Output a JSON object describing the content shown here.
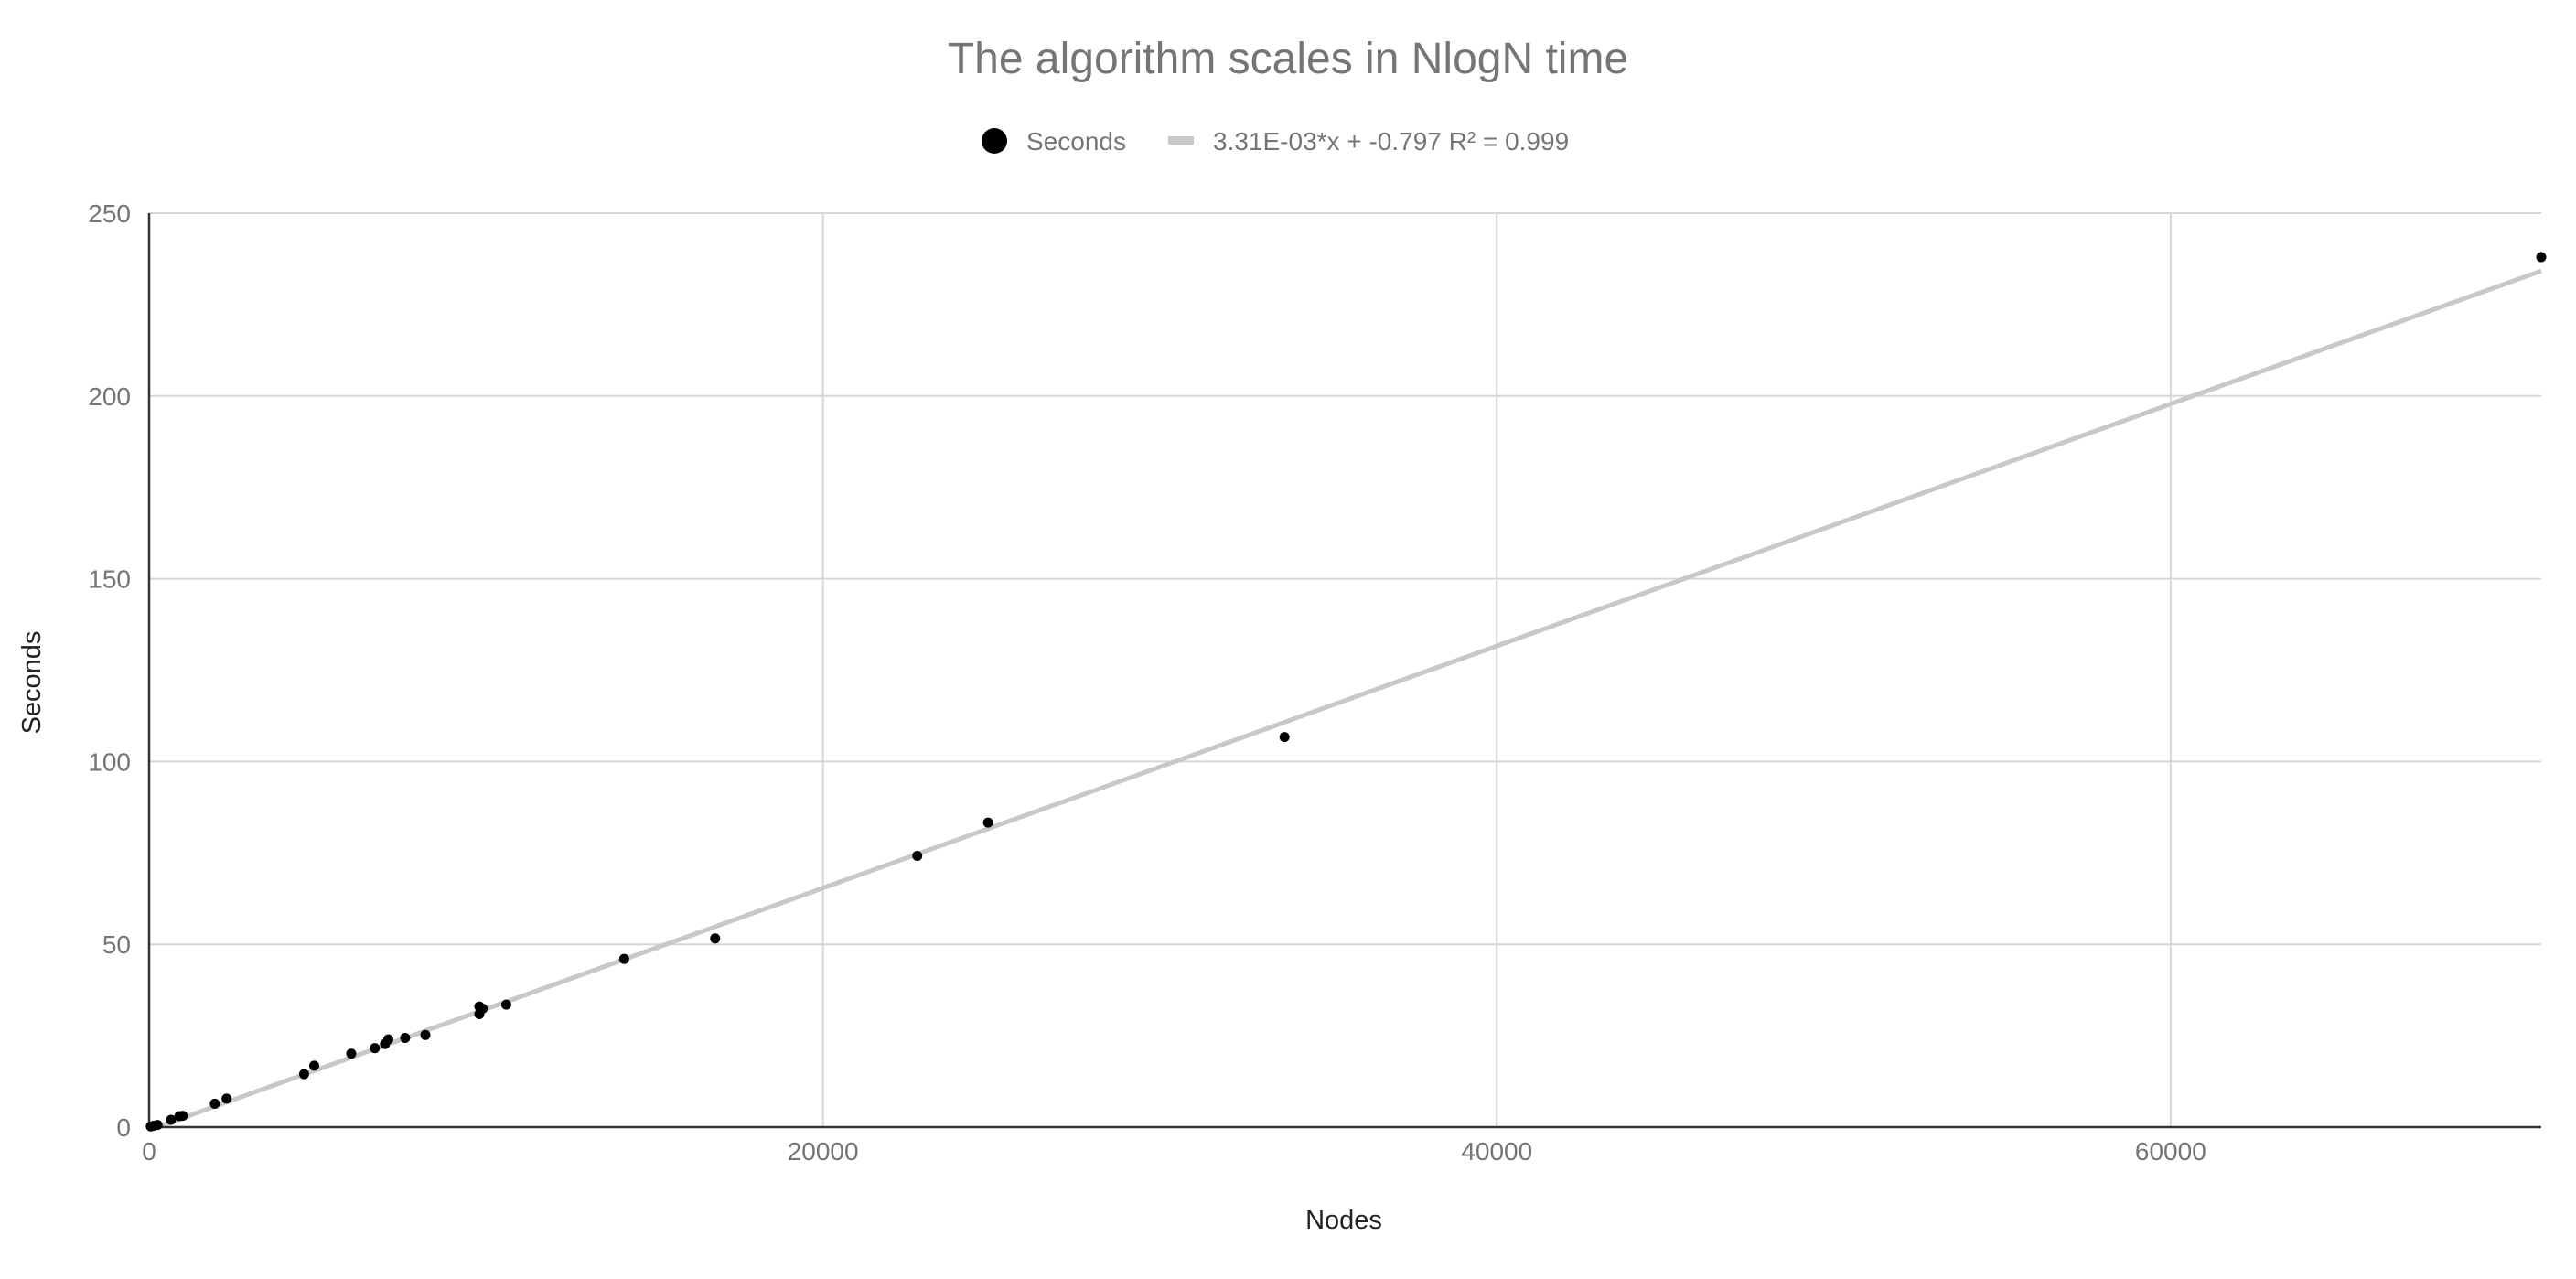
{
  "chart_data": {
    "type": "scatter",
    "title": "The algorithm scales in NlogN time",
    "xlabel": "Nodes",
    "ylabel": "Seconds",
    "xlim": [
      0,
      71000
    ],
    "ylim": [
      0,
      250
    ],
    "x_ticks": [
      "0",
      "20000",
      "40000",
      "60000"
    ],
    "y_ticks": [
      "0",
      "50",
      "100",
      "150",
      "200",
      "250"
    ],
    "grid": true,
    "legend": "top-center",
    "series": [
      {
        "name": "Seconds",
        "color": "#000000",
        "points": [
          [
            50,
            0.2
          ],
          [
            150,
            0.4
          ],
          [
            250,
            0.6
          ],
          [
            650,
            2.0
          ],
          [
            900,
            3.0
          ],
          [
            1000,
            3.1
          ],
          [
            1950,
            6.4
          ],
          [
            2300,
            7.8
          ],
          [
            4600,
            14.5
          ],
          [
            4900,
            16.8
          ],
          [
            6000,
            20.1
          ],
          [
            6700,
            21.6
          ],
          [
            7000,
            22.7
          ],
          [
            7100,
            24.0
          ],
          [
            7600,
            24.4
          ],
          [
            8200,
            25.2
          ],
          [
            9800,
            33.0
          ],
          [
            9800,
            30.9
          ],
          [
            9900,
            32.4
          ],
          [
            10600,
            33.5
          ],
          [
            14100,
            46.0
          ],
          [
            16800,
            51.6
          ],
          [
            22800,
            74.2
          ],
          [
            24900,
            83.3
          ],
          [
            33700,
            106.7
          ],
          [
            71000,
            238.0
          ]
        ]
      }
    ],
    "trendline": {
      "label": "3.31E-03*x + -0.797 R² = 0.999",
      "slope": 0.00331,
      "intercept": -0.797,
      "color": "#c8c8c8"
    },
    "colors": {
      "grid": "#d6d6d6",
      "axis": "#333333"
    }
  }
}
